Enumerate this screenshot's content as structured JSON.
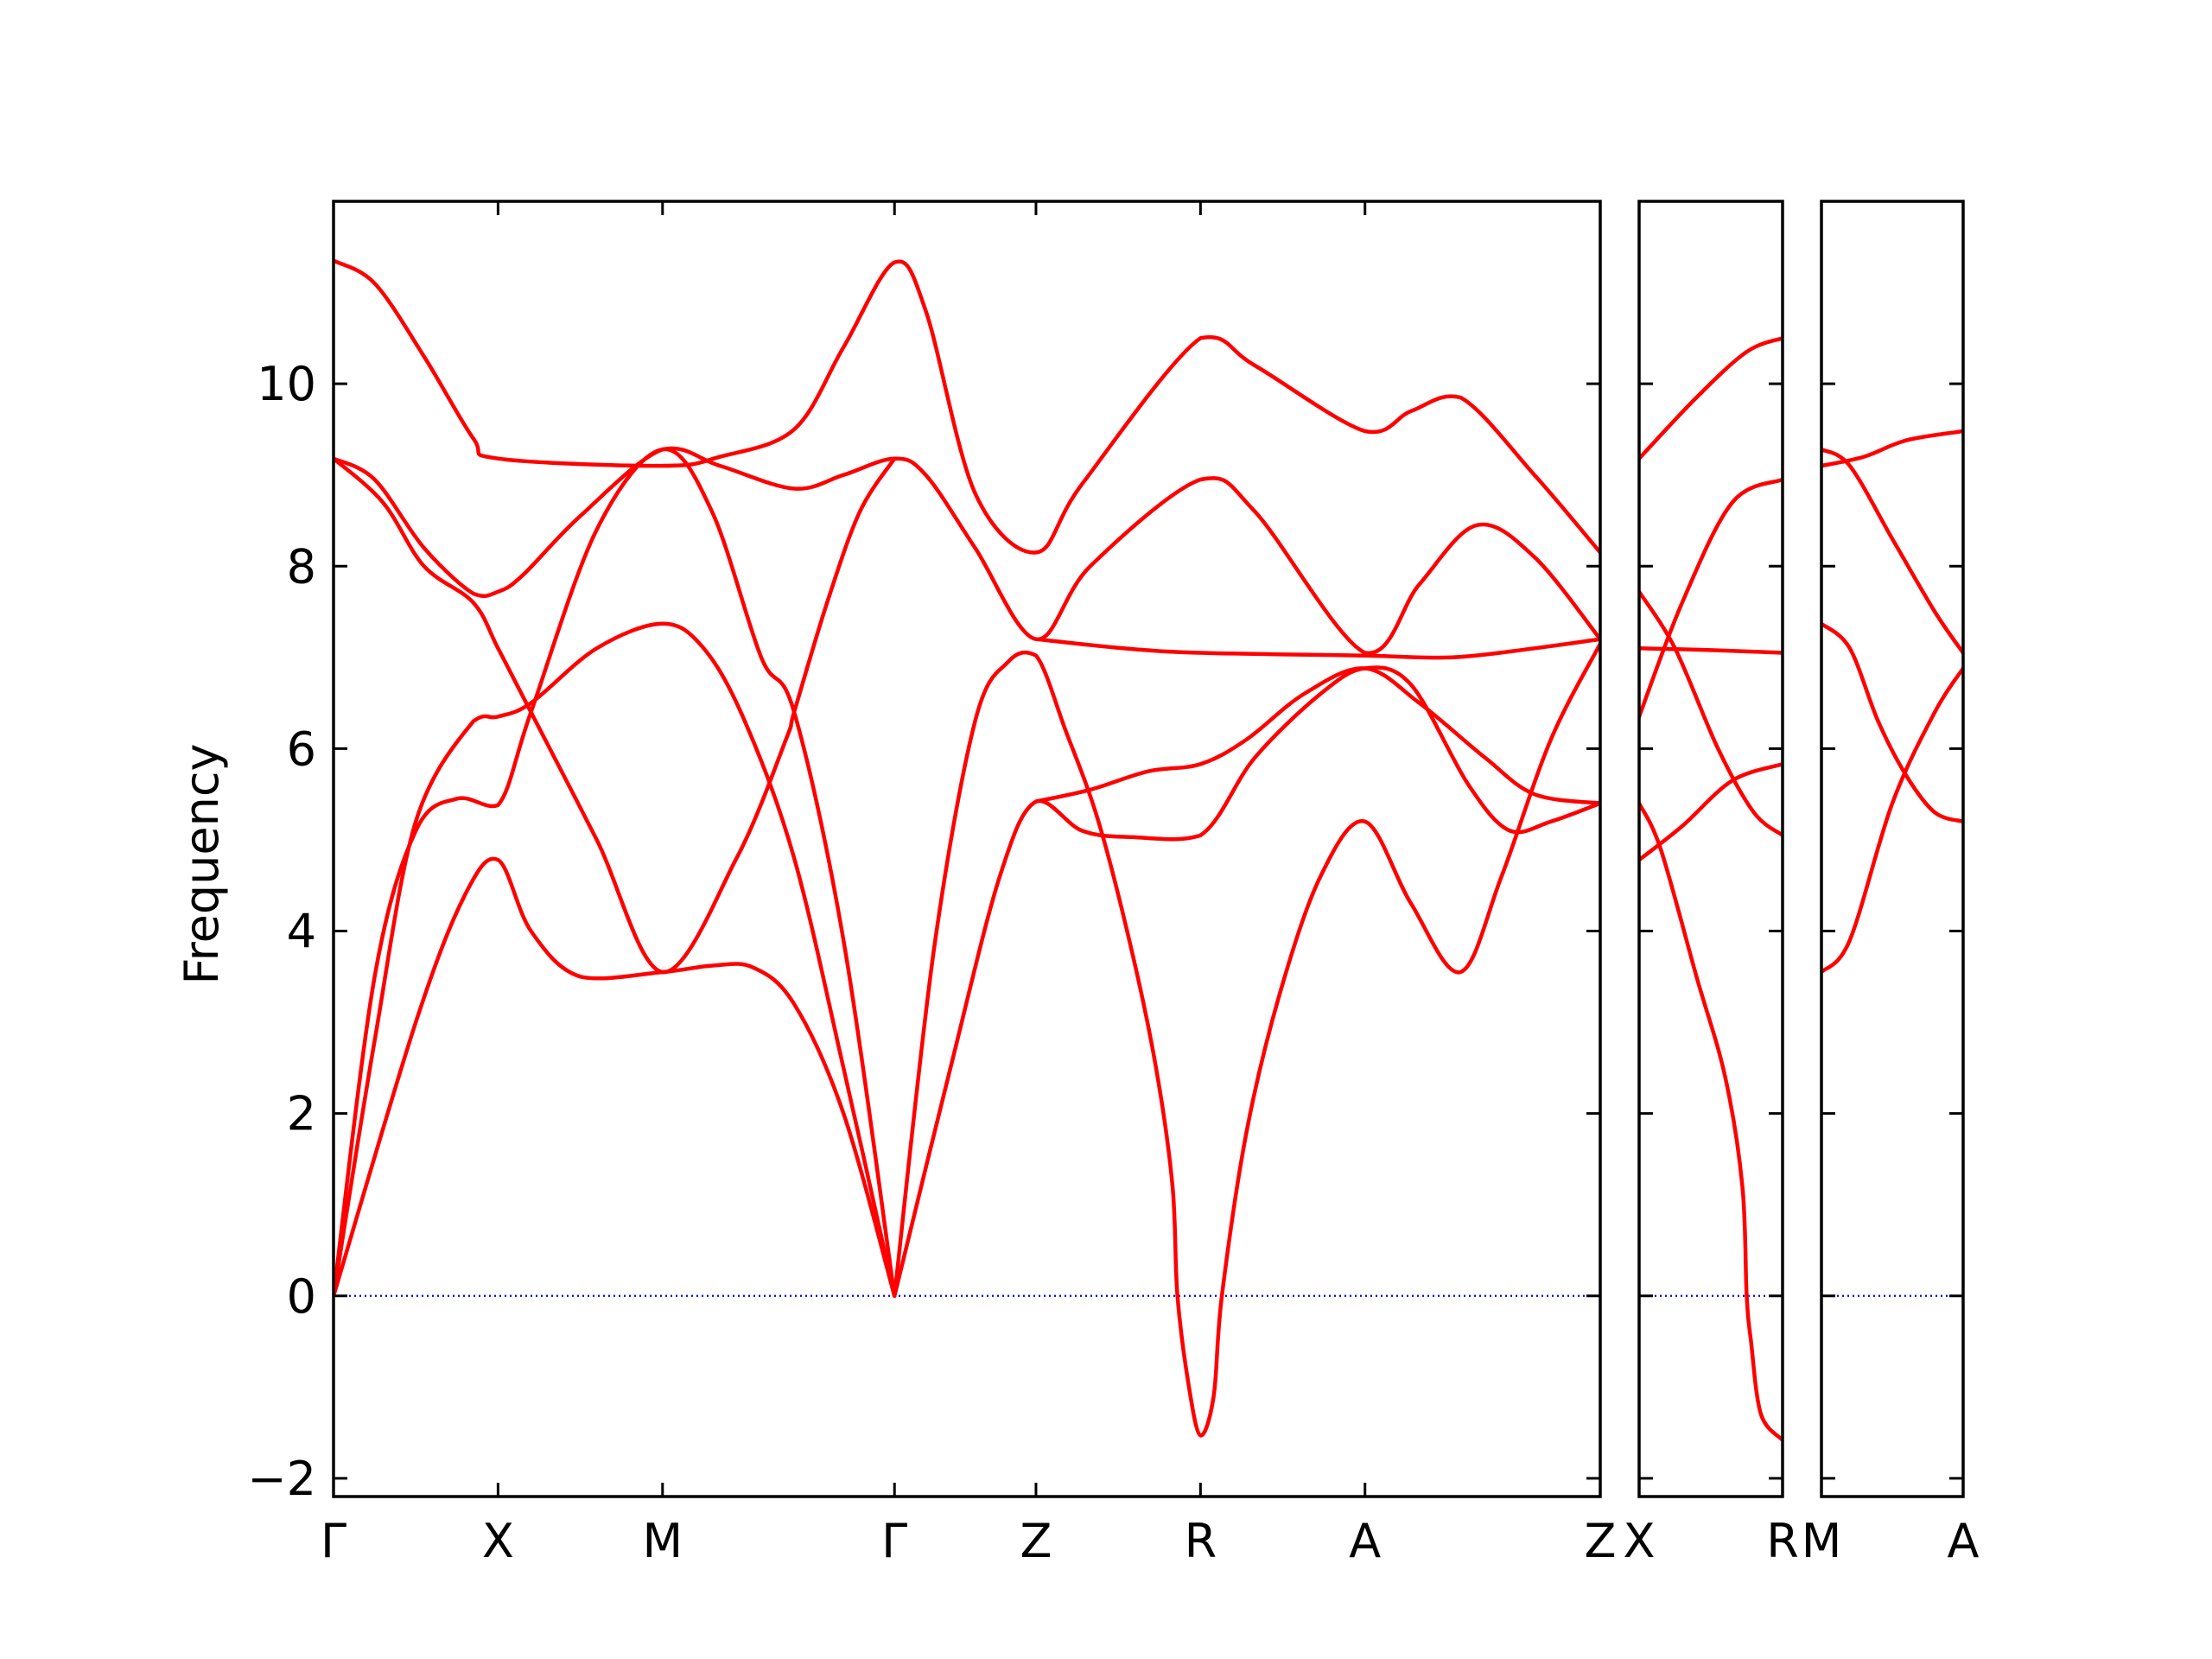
{
  "chart_data": {
    "type": "line",
    "title": "",
    "xlabel": "",
    "ylabel": "Frequency",
    "ylim": [
      -2.2,
      12.0
    ],
    "yticks": [
      -2,
      0,
      2,
      4,
      6,
      8,
      10
    ],
    "ytick_labels": [
      "−2",
      "0",
      "2",
      "4",
      "6",
      "8",
      "10"
    ],
    "grid": false,
    "legend": "none",
    "colors": {
      "bands": "#ff0000",
      "zero_line": "#0000ff",
      "axes": "#000000"
    },
    "panels": [
      {
        "name": "panel-main",
        "x_range": [
          0,
          7.7
        ],
        "ticks": [
          {
            "x": 0.0,
            "label": "Γ"
          },
          {
            "x": 1.0,
            "label": "X"
          },
          {
            "x": 2.0,
            "label": "M"
          },
          {
            "x": 3.41,
            "label": "Γ"
          },
          {
            "x": 4.27,
            "label": "Z"
          },
          {
            "x": 5.27,
            "label": "R"
          },
          {
            "x": 6.27,
            "label": "A"
          },
          {
            "x": 7.7,
            "label": "Z"
          }
        ],
        "bands": [
          [
            [
              0,
              11.35
            ],
            [
              0.25,
              11.1
            ],
            [
              0.55,
              10.3
            ],
            [
              0.85,
              9.4
            ],
            [
              1.0,
              9.18
            ],
            [
              2.0,
              9.1
            ],
            [
              2.35,
              9.2
            ],
            [
              2.8,
              9.5
            ],
            [
              3.1,
              10.4
            ],
            [
              3.41,
              11.33
            ],
            [
              3.6,
              10.8
            ],
            [
              3.9,
              8.8
            ],
            [
              4.27,
              8.15
            ],
            [
              4.55,
              8.9
            ],
            [
              5.27,
              10.5
            ],
            [
              5.6,
              10.2
            ],
            [
              6.27,
              9.48
            ],
            [
              6.55,
              9.7
            ],
            [
              6.85,
              9.85
            ],
            [
              7.3,
              9.0
            ],
            [
              7.7,
              8.15
            ]
          ],
          [
            [
              0,
              9.18
            ],
            [
              0.25,
              8.95
            ],
            [
              0.55,
              8.2
            ],
            [
              0.85,
              7.7
            ],
            [
              1.0,
              7.72
            ],
            [
              1.15,
              7.9
            ],
            [
              1.5,
              8.55
            ],
            [
              2.0,
              9.28
            ],
            [
              2.35,
              9.1
            ],
            [
              2.8,
              8.85
            ],
            [
              3.1,
              9.0
            ],
            [
              3.41,
              9.18
            ],
            [
              3.6,
              9.0
            ],
            [
              3.9,
              8.2
            ],
            [
              4.27,
              7.2
            ],
            [
              4.6,
              8.0
            ],
            [
              5.27,
              8.95
            ],
            [
              5.6,
              8.6
            ],
            [
              6.27,
              7.05
            ],
            [
              6.6,
              7.8
            ],
            [
              6.95,
              8.45
            ],
            [
              7.3,
              8.1
            ],
            [
              7.7,
              7.2
            ]
          ],
          [
            [
              0,
              9.18
            ],
            [
              0.3,
              8.7
            ],
            [
              0.55,
              8.0
            ],
            [
              0.85,
              7.6
            ],
            [
              1.0,
              7.1
            ],
            [
              1.2,
              6.4
            ],
            [
              1.6,
              5.0
            ],
            [
              2.0,
              3.55
            ],
            [
              2.45,
              4.8
            ],
            [
              2.75,
              6.1
            ],
            [
              2.8,
              6.4
            ],
            [
              3.0,
              7.6
            ],
            [
              3.2,
              8.6
            ],
            [
              3.41,
              9.18
            ]
          ],
          [
            [
              0,
              0.0
            ],
            [
              0.25,
              3.5
            ],
            [
              0.5,
              5.1
            ],
            [
              0.75,
              5.45
            ],
            [
              1.0,
              5.38
            ],
            [
              1.2,
              6.4
            ],
            [
              1.6,
              8.4
            ],
            [
              2.0,
              9.28
            ],
            [
              2.3,
              8.6
            ],
            [
              2.6,
              7.0
            ],
            [
              2.8,
              6.4
            ],
            [
              3.1,
              3.9
            ],
            [
              3.41,
              0.0
            ]
          ],
          [
            [
              0,
              0.0
            ],
            [
              0.25,
              2.8
            ],
            [
              0.5,
              5.2
            ],
            [
              0.85,
              6.3
            ],
            [
              1.0,
              6.35
            ],
            [
              1.2,
              6.5
            ],
            [
              1.6,
              7.1
            ],
            [
              2.0,
              7.37
            ],
            [
              2.25,
              7.1
            ],
            [
              2.5,
              6.3
            ],
            [
              2.8,
              4.8
            ],
            [
              3.1,
              2.5
            ],
            [
              3.41,
              0.0
            ]
          ],
          [
            [
              0,
              0.0
            ],
            [
              0.5,
              3.0
            ],
            [
              0.8,
              4.4
            ],
            [
              1.0,
              4.78
            ],
            [
              1.2,
              4.0
            ],
            [
              1.5,
              3.5
            ],
            [
              2.0,
              3.55
            ],
            [
              2.3,
              3.62
            ],
            [
              2.55,
              3.6
            ],
            [
              2.8,
              3.2
            ],
            [
              3.1,
              2.0
            ],
            [
              3.41,
              0.0
            ]
          ],
          [
            [
              3.41,
              0.0
            ],
            [
              3.65,
              3.8
            ],
            [
              3.9,
              6.3
            ],
            [
              4.1,
              6.95
            ],
            [
              4.27,
              7.02
            ],
            [
              4.45,
              6.2
            ],
            [
              4.65,
              5.2
            ],
            [
              4.85,
              3.8
            ],
            [
              5.0,
              2.5
            ],
            [
              5.1,
              1.2
            ],
            [
              5.13,
              0.0
            ],
            [
              5.2,
              -1.0
            ],
            [
              5.27,
              -1.53
            ],
            [
              5.35,
              -1.1
            ],
            [
              5.4,
              0.0
            ],
            [
              5.55,
              1.8
            ],
            [
              5.75,
              3.3
            ],
            [
              6.0,
              4.6
            ],
            [
              6.27,
              5.2
            ],
            [
              6.55,
              4.3
            ],
            [
              6.85,
              3.55
            ],
            [
              7.1,
              4.6
            ],
            [
              7.4,
              6.1
            ],
            [
              7.7,
              7.15
            ]
          ],
          [
            [
              3.41,
              0.0
            ],
            [
              3.75,
              2.5
            ],
            [
              4.05,
              4.6
            ],
            [
              4.27,
              5.42
            ],
            [
              4.55,
              5.1
            ],
            [
              4.85,
              5.03
            ],
            [
              5.27,
              5.05
            ],
            [
              5.6,
              5.9
            ],
            [
              6.0,
              6.6
            ],
            [
              6.27,
              6.88
            ],
            [
              6.55,
              6.7
            ],
            [
              6.9,
              5.6
            ],
            [
              7.15,
              5.1
            ],
            [
              7.4,
              5.2
            ],
            [
              7.7,
              5.4
            ]
          ],
          [
            [
              4.27,
              5.42
            ],
            [
              4.6,
              5.55
            ],
            [
              4.95,
              5.75
            ],
            [
              5.27,
              5.83
            ],
            [
              5.55,
              6.1
            ],
            [
              5.9,
              6.6
            ],
            [
              6.27,
              6.88
            ],
            [
              6.6,
              6.5
            ],
            [
              7.0,
              5.9
            ],
            [
              7.3,
              5.5
            ],
            [
              7.7,
              5.4
            ]
          ],
          [
            [
              4.27,
              7.2
            ],
            [
              4.8,
              7.1
            ],
            [
              5.27,
              7.05
            ],
            [
              6.27,
              7.02
            ],
            [
              6.8,
              7.0
            ],
            [
              7.3,
              7.1
            ],
            [
              7.7,
              7.2
            ]
          ]
        ]
      },
      {
        "name": "panel-xr",
        "x_range": [
          0,
          1.0
        ],
        "ticks": [
          {
            "x": 0.0,
            "label": "X"
          },
          {
            "x": 1.0,
            "label": "R"
          }
        ],
        "bands": [
          [
            [
              0,
              9.18
            ],
            [
              0.4,
              9.85
            ],
            [
              0.75,
              10.35
            ],
            [
              1.0,
              10.5
            ]
          ],
          [
            [
              0,
              6.35
            ],
            [
              0.3,
              7.6
            ],
            [
              0.65,
              8.7
            ],
            [
              1.0,
              8.95
            ]
          ],
          [
            [
              0,
              7.72
            ],
            [
              0.25,
              7.1
            ],
            [
              0.55,
              6.0
            ],
            [
              0.8,
              5.3
            ],
            [
              1.0,
              5.05
            ]
          ],
          [
            [
              0,
              4.78
            ],
            [
              0.3,
              5.15
            ],
            [
              0.65,
              5.65
            ],
            [
              1.0,
              5.83
            ]
          ],
          [
            [
              0,
              7.1
            ],
            [
              0.5,
              7.08
            ],
            [
              1.0,
              7.05
            ]
          ],
          [
            [
              0,
              5.4
            ],
            [
              0.15,
              4.9
            ],
            [
              0.4,
              3.5
            ],
            [
              0.6,
              2.4
            ],
            [
              0.72,
              1.2
            ],
            [
              0.75,
              0.0
            ],
            [
              0.78,
              -0.5
            ],
            [
              0.85,
              -1.3
            ],
            [
              1.0,
              -1.58
            ]
          ]
        ]
      },
      {
        "name": "panel-ma",
        "x_range": [
          0,
          1.0
        ],
        "ticks": [
          {
            "x": 0.0,
            "label": "M"
          },
          {
            "x": 1.0,
            "label": "A"
          }
        ],
        "bands": [
          [
            [
              0,
              9.1
            ],
            [
              0.3,
              9.2
            ],
            [
              0.6,
              9.38
            ],
            [
              1.0,
              9.48
            ]
          ],
          [
            [
              0,
              9.28
            ],
            [
              0.2,
              9.1
            ],
            [
              0.5,
              8.3
            ],
            [
              0.8,
              7.5
            ],
            [
              1.0,
              7.05
            ]
          ],
          [
            [
              0,
              7.37
            ],
            [
              0.2,
              7.1
            ],
            [
              0.4,
              6.3
            ],
            [
              0.6,
              5.7
            ],
            [
              0.8,
              5.3
            ],
            [
              1.0,
              5.2
            ]
          ],
          [
            [
              0,
              3.55
            ],
            [
              0.2,
              3.9
            ],
            [
              0.5,
              5.4
            ],
            [
              0.8,
              6.4
            ],
            [
              1.0,
              6.88
            ]
          ]
        ]
      }
    ]
  }
}
